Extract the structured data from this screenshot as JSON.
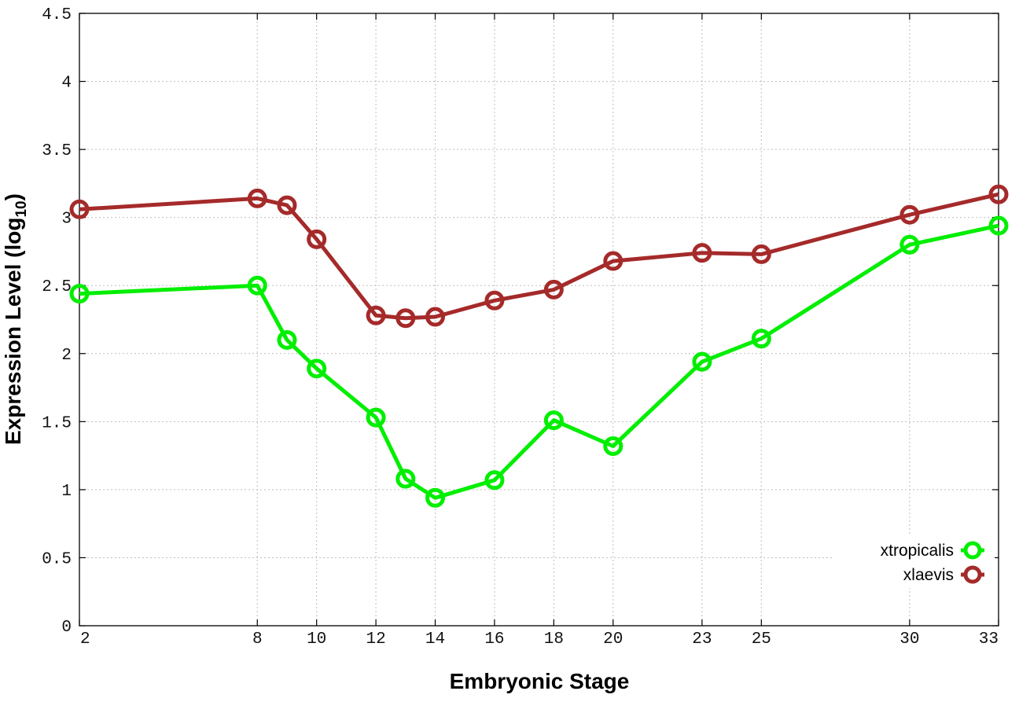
{
  "chart_data": {
    "type": "line",
    "xlabel": "Embryonic Stage",
    "ylabel_main": "Expression Level (log",
    "ylabel_sub": "10",
    "ylabel_close": ")",
    "xlim": [
      2,
      33
    ],
    "ylim": [
      0,
      4.5
    ],
    "x_ticks": [
      2,
      8,
      10,
      12,
      14,
      16,
      18,
      20,
      23,
      25,
      30,
      33
    ],
    "y_ticks": [
      0,
      0.5,
      1,
      1.5,
      2,
      2.5,
      3,
      3.5,
      4,
      4.5
    ],
    "y_tick_labels": [
      "0",
      "0.5",
      "1",
      "1.5",
      "2",
      "2.5",
      "3",
      "3.5",
      "4",
      "4.5"
    ],
    "grid": true,
    "legend_position": "bottom-right",
    "x": [
      2,
      8,
      9,
      10,
      12,
      13,
      14,
      16,
      18,
      20,
      23,
      25,
      30,
      33
    ],
    "series": [
      {
        "name": "xtropicalis",
        "color": "#00ee00",
        "values": [
          2.44,
          2.5,
          2.1,
          1.89,
          1.53,
          1.08,
          0.94,
          1.07,
          1.51,
          1.32,
          1.94,
          2.11,
          2.8,
          2.94
        ]
      },
      {
        "name": "xlaevis",
        "color": "#a52a2a",
        "values": [
          3.06,
          3.14,
          3.09,
          2.84,
          2.28,
          2.26,
          2.27,
          2.39,
          2.47,
          2.68,
          2.74,
          2.73,
          3.02,
          3.17
        ]
      }
    ]
  }
}
